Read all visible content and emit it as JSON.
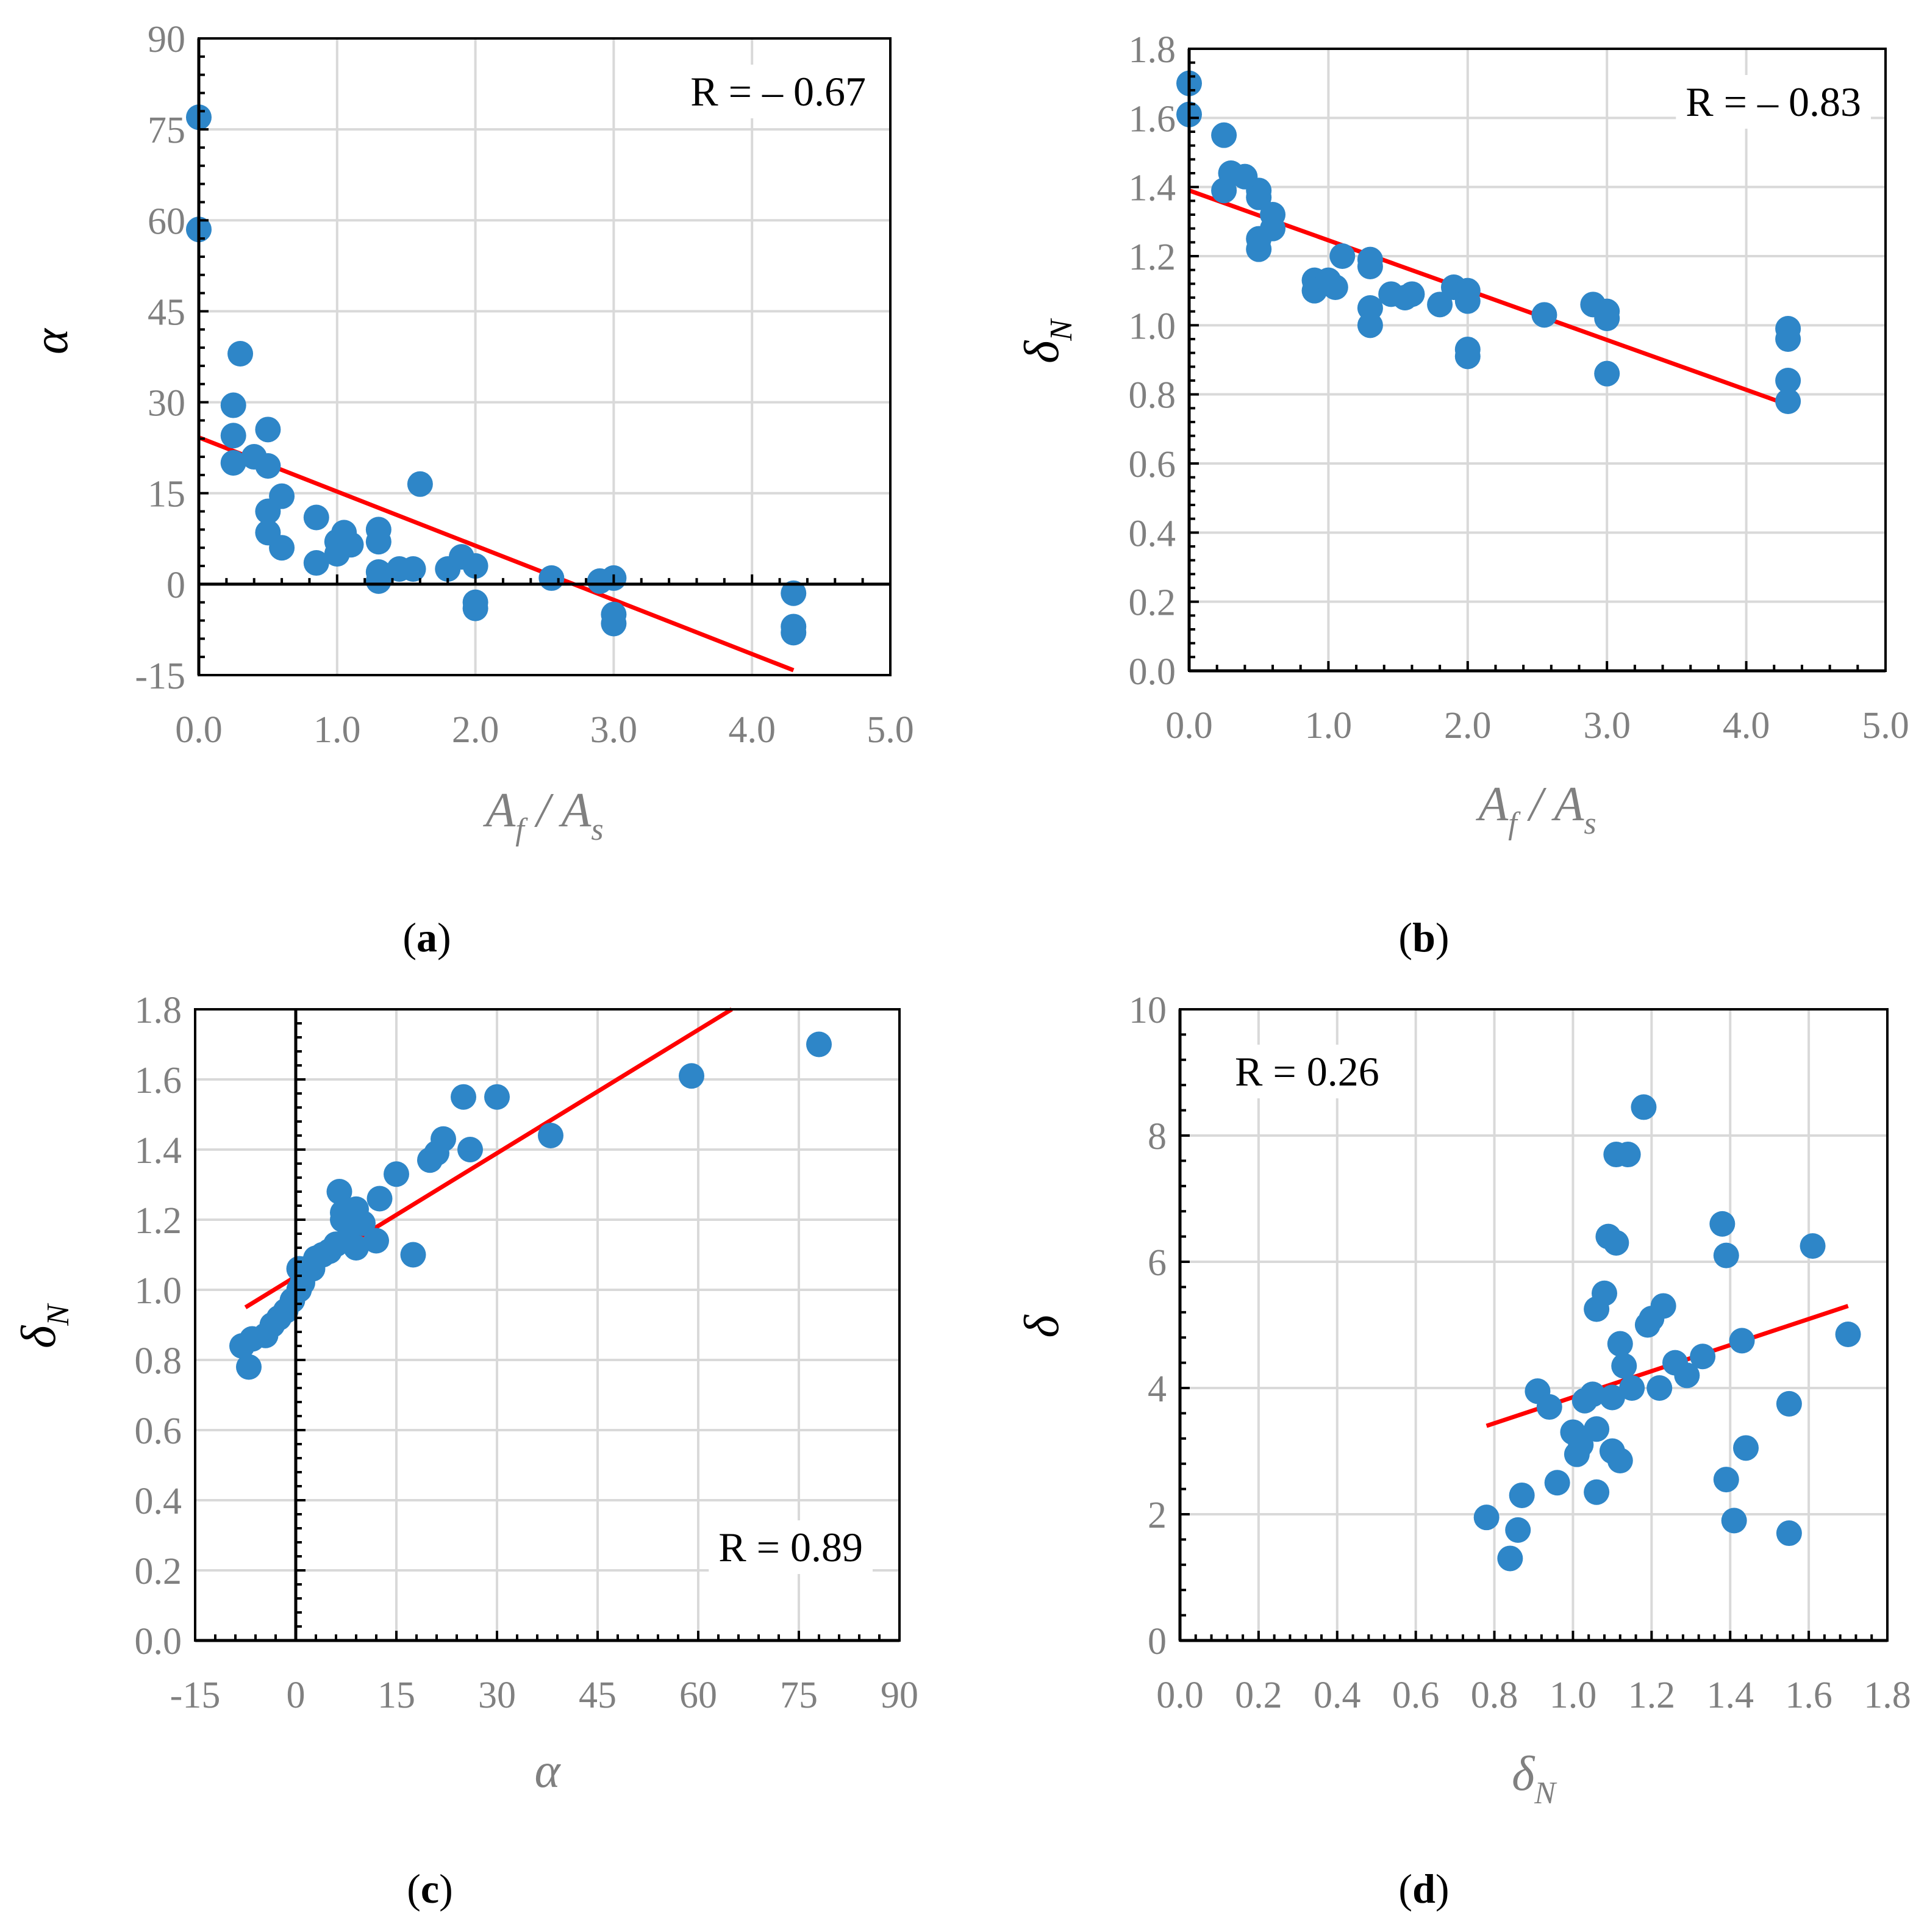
{
  "colors": {
    "point": "#2E86C8",
    "fit": "#FF0000",
    "grid": "#D9D9D9",
    "axis": "#000000",
    "tick_text": "#808080"
  },
  "chart_data": [
    {
      "id": "a",
      "type": "scatter",
      "panel_label": "a",
      "xlabel": {
        "main": "A",
        "sub1": "f",
        "sep": " / ",
        "main2": "A",
        "sub2": "s"
      },
      "ylabel": {
        "main": "α",
        "sub": ""
      },
      "xlim": [
        0,
        5
      ],
      "ylim": [
        -15,
        90
      ],
      "xticks": [
        0,
        1,
        2,
        3,
        4,
        5
      ],
      "xtick_labels": [
        "0.0",
        "1.0",
        "2.0",
        "3.0",
        "4.0",
        "5.0"
      ],
      "yticks": [
        -15,
        0,
        15,
        30,
        45,
        60,
        75,
        90
      ],
      "ytick_labels": [
        "-15",
        "0",
        "15",
        "30",
        "45",
        "60",
        "75",
        "90"
      ],
      "r_text": "R = – 0.67",
      "r_pos": "top-right",
      "zero_line": "y",
      "fit": [
        [
          0,
          24.2
        ],
        [
          4.3,
          -14.2
        ]
      ],
      "points": [
        [
          0,
          77
        ],
        [
          0,
          58.5
        ],
        [
          0.3,
          38
        ],
        [
          0.25,
          29.5
        ],
        [
          0.25,
          24.5
        ],
        [
          0.25,
          20
        ],
        [
          0.4,
          21
        ],
        [
          0.5,
          25.5
        ],
        [
          0.5,
          19.5
        ],
        [
          0.5,
          12
        ],
        [
          0.5,
          8.5
        ],
        [
          0.6,
          14.5
        ],
        [
          0.6,
          6
        ],
        [
          0.85,
          11
        ],
        [
          0.85,
          3.5
        ],
        [
          1.0,
          7
        ],
        [
          1.0,
          5
        ],
        [
          1.05,
          8.5
        ],
        [
          1.1,
          6.5
        ],
        [
          1.3,
          9
        ],
        [
          1.3,
          7
        ],
        [
          1.3,
          2
        ],
        [
          1.3,
          0.5
        ],
        [
          1.45,
          2.5
        ],
        [
          1.55,
          2.5
        ],
        [
          1.6,
          16.5
        ],
        [
          1.8,
          2.5
        ],
        [
          1.9,
          4.5
        ],
        [
          2.0,
          3
        ],
        [
          2.0,
          -3
        ],
        [
          2.0,
          -4
        ],
        [
          2.55,
          1
        ],
        [
          2.9,
          0.5
        ],
        [
          3.0,
          1
        ],
        [
          3.0,
          -5
        ],
        [
          3.0,
          -6.5
        ],
        [
          4.3,
          -1.5
        ],
        [
          4.3,
          -7
        ],
        [
          4.3,
          -8
        ]
      ]
    },
    {
      "id": "b",
      "type": "scatter",
      "panel_label": "b",
      "xlabel": {
        "main": "A",
        "sub1": "f",
        "sep": " / ",
        "main2": "A",
        "sub2": "s"
      },
      "ylabel": {
        "main": "δ",
        "sub": "N"
      },
      "xlim": [
        0,
        5
      ],
      "ylim": [
        0,
        1.8
      ],
      "xticks": [
        0,
        1,
        2,
        3,
        4,
        5
      ],
      "xtick_labels": [
        "0.0",
        "1.0",
        "2.0",
        "3.0",
        "4.0",
        "5.0"
      ],
      "yticks": [
        0,
        0.2,
        0.4,
        0.6,
        0.8,
        1.0,
        1.2,
        1.4,
        1.6,
        1.8
      ],
      "ytick_labels": [
        "0.0",
        "0.2",
        "0.4",
        "0.6",
        "0.8",
        "1.0",
        "1.2",
        "1.4",
        "1.6",
        "1.8"
      ],
      "r_text": "R = – 0.83",
      "r_pos": "top-right",
      "zero_line": "",
      "fit": [
        [
          0,
          1.39
        ],
        [
          4.3,
          0.77
        ]
      ],
      "points": [
        [
          0,
          1.7
        ],
        [
          0,
          1.61
        ],
        [
          0.25,
          1.55
        ],
        [
          0.25,
          1.39
        ],
        [
          0.3,
          1.44
        ],
        [
          0.4,
          1.43
        ],
        [
          0.5,
          1.39
        ],
        [
          0.5,
          1.37
        ],
        [
          0.5,
          1.25
        ],
        [
          0.5,
          1.22
        ],
        [
          0.6,
          1.32
        ],
        [
          0.6,
          1.28
        ],
        [
          0.9,
          1.13
        ],
        [
          0.9,
          1.1
        ],
        [
          1.0,
          1.13
        ],
        [
          1.05,
          1.11
        ],
        [
          1.1,
          1.2
        ],
        [
          1.3,
          1.19
        ],
        [
          1.3,
          1.17
        ],
        [
          1.3,
          1.05
        ],
        [
          1.3,
          1.0
        ],
        [
          1.45,
          1.09
        ],
        [
          1.55,
          1.08
        ],
        [
          1.6,
          1.09
        ],
        [
          1.8,
          1.06
        ],
        [
          1.9,
          1.11
        ],
        [
          2.0,
          1.1
        ],
        [
          2.0,
          1.07
        ],
        [
          2.0,
          0.93
        ],
        [
          2.0,
          0.91
        ],
        [
          2.55,
          1.03
        ],
        [
          2.9,
          1.06
        ],
        [
          3.0,
          1.04
        ],
        [
          3.0,
          1.02
        ],
        [
          3.0,
          0.86
        ],
        [
          4.3,
          0.99
        ],
        [
          4.3,
          0.96
        ],
        [
          4.3,
          0.84
        ],
        [
          4.3,
          0.78
        ]
      ]
    },
    {
      "id": "c",
      "type": "scatter",
      "panel_label": "c",
      "xlabel": {
        "main": "α",
        "sub1": "",
        "sep": "",
        "main2": "",
        "sub2": ""
      },
      "ylabel": {
        "main": "δ",
        "sub": "N"
      },
      "xlim": [
        -15,
        90
      ],
      "ylim": [
        0,
        1.8
      ],
      "xticks": [
        -15,
        0,
        15,
        30,
        45,
        60,
        75,
        90
      ],
      "xtick_labels": [
        "-15",
        "0",
        "15",
        "30",
        "45",
        "60",
        "75",
        "90"
      ],
      "yticks": [
        0,
        0.2,
        0.4,
        0.6,
        0.8,
        1.0,
        1.2,
        1.4,
        1.6,
        1.8
      ],
      "ytick_labels": [
        "0.0",
        "0.2",
        "0.4",
        "0.6",
        "0.8",
        "1.0",
        "1.2",
        "1.4",
        "1.6",
        "1.8"
      ],
      "r_text": "R =  0.89",
      "r_pos": "bottom-right",
      "zero_line": "x",
      "fit": [
        [
          -7.5,
          0.95
        ],
        [
          65,
          1.8
        ]
      ],
      "points": [
        [
          -8,
          0.84
        ],
        [
          -7,
          0.78
        ],
        [
          -6.5,
          0.86
        ],
        [
          -4.5,
          0.87
        ],
        [
          -3.5,
          0.9
        ],
        [
          -2.5,
          0.92
        ],
        [
          -1.5,
          0.94
        ],
        [
          -0.5,
          0.97
        ],
        [
          0.5,
          1.0
        ],
        [
          0.5,
          1.06
        ],
        [
          1,
          1.02
        ],
        [
          1.5,
          1.06
        ],
        [
          2.5,
          1.06
        ],
        [
          3,
          1.09
        ],
        [
          4,
          1.1
        ],
        [
          5,
          1.11
        ],
        [
          6,
          1.13
        ],
        [
          6.5,
          1.28
        ],
        [
          7,
          1.2
        ],
        [
          7,
          1.22
        ],
        [
          8,
          1.18
        ],
        [
          8.5,
          1.2
        ],
        [
          9,
          1.12
        ],
        [
          9,
          1.23
        ],
        [
          10,
          1.19
        ],
        [
          12,
          1.14
        ],
        [
          12.5,
          1.26
        ],
        [
          15,
          1.33
        ],
        [
          17.5,
          1.1
        ],
        [
          20,
          1.37
        ],
        [
          21,
          1.39
        ],
        [
          22,
          1.43
        ],
        [
          25,
          1.55
        ],
        [
          26,
          1.4
        ],
        [
          30,
          1.55
        ],
        [
          38,
          1.44
        ],
        [
          59,
          1.61
        ],
        [
          78,
          1.7
        ]
      ]
    },
    {
      "id": "d",
      "type": "scatter",
      "panel_label": "d",
      "xlabel": {
        "main": "δ",
        "sub1": "N",
        "sep": "",
        "main2": "",
        "sub2": ""
      },
      "ylabel": {
        "main": "δ",
        "sub": ""
      },
      "xlim": [
        0,
        1.8
      ],
      "ylim": [
        0,
        10
      ],
      "xticks": [
        0,
        0.2,
        0.4,
        0.6,
        0.8,
        1.0,
        1.2,
        1.4,
        1.6,
        1.8
      ],
      "xtick_labels": [
        "0.0",
        "0.2",
        "0.4",
        "0.6",
        "0.8",
        "1.0",
        "1.2",
        "1.4",
        "1.6",
        "1.8"
      ],
      "yticks": [
        0,
        2,
        4,
        6,
        8,
        10
      ],
      "ytick_labels": [
        "0",
        "2",
        "4",
        "6",
        "8",
        "10"
      ],
      "r_text": "R =  0.26",
      "r_pos": "top-left",
      "zero_line": "",
      "fit": [
        [
          0.78,
          3.4
        ],
        [
          1.7,
          5.3
        ]
      ],
      "points": [
        [
          0.78,
          1.95
        ],
        [
          0.84,
          1.3
        ],
        [
          0.86,
          1.75
        ],
        [
          0.87,
          2.3
        ],
        [
          0.91,
          3.95
        ],
        [
          0.94,
          3.7
        ],
        [
          0.96,
          2.5
        ],
        [
          1.0,
          3.3
        ],
        [
          1.01,
          2.95
        ],
        [
          1.02,
          3.1
        ],
        [
          1.03,
          3.8
        ],
        [
          1.05,
          3.9
        ],
        [
          1.06,
          5.25
        ],
        [
          1.06,
          3.35
        ],
        [
          1.06,
          2.35
        ],
        [
          1.08,
          5.5
        ],
        [
          1.09,
          6.4
        ],
        [
          1.1,
          3.0
        ],
        [
          1.1,
          3.85
        ],
        [
          1.11,
          6.3
        ],
        [
          1.11,
          7.7
        ],
        [
          1.12,
          2.85
        ],
        [
          1.12,
          4.7
        ],
        [
          1.13,
          4.35
        ],
        [
          1.14,
          7.7
        ],
        [
          1.15,
          4.0
        ],
        [
          1.18,
          8.45
        ],
        [
          1.19,
          5.0
        ],
        [
          1.2,
          5.1
        ],
        [
          1.22,
          4.0
        ],
        [
          1.23,
          5.3
        ],
        [
          1.26,
          4.4
        ],
        [
          1.29,
          4.2
        ],
        [
          1.33,
          4.5
        ],
        [
          1.38,
          6.6
        ],
        [
          1.39,
          2.55
        ],
        [
          1.39,
          6.1
        ],
        [
          1.41,
          1.9
        ],
        [
          1.43,
          4.75
        ],
        [
          1.44,
          3.05
        ],
        [
          1.55,
          3.75
        ],
        [
          1.55,
          1.7
        ],
        [
          1.61,
          6.25
        ],
        [
          1.7,
          4.85
        ]
      ]
    }
  ]
}
